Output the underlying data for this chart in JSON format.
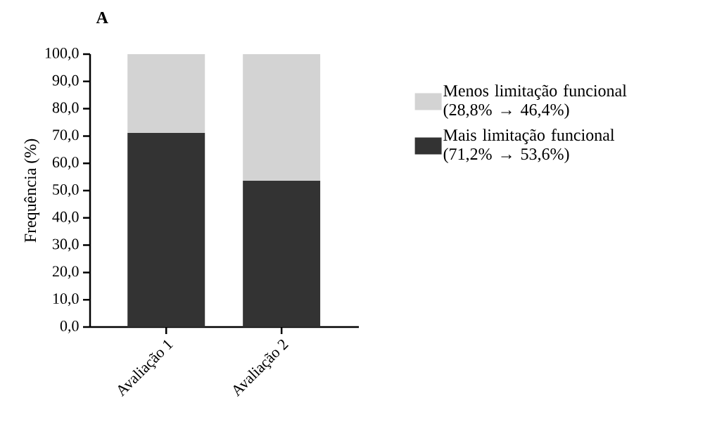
{
  "chart_data": {
    "type": "bar",
    "title": "A",
    "ylabel": "Frequência (%)",
    "categories": [
      "Avaliação 1",
      "Avaliação 2"
    ],
    "stacked": true,
    "series": [
      {
        "name": "Mais limitação funcional (71,2% → 53,6%)",
        "color": "#333333",
        "values": [
          71.2,
          53.6
        ]
      },
      {
        "name": "Menos limitação funcional (28,8% → 46,4%)",
        "color": "#d3d3d3",
        "values": [
          28.8,
          46.4
        ]
      }
    ],
    "ylim": [
      0,
      100
    ],
    "yticks": [
      {
        "value": 0,
        "label": "0,0"
      },
      {
        "value": 10,
        "label": "10,0"
      },
      {
        "value": 20,
        "label": "20,0"
      },
      {
        "value": 30,
        "label": "30,0"
      },
      {
        "value": 40,
        "label": "40,0"
      },
      {
        "value": 50,
        "label": "50,0"
      },
      {
        "value": 60,
        "label": "60,0"
      },
      {
        "value": 70,
        "label": "70,0"
      },
      {
        "value": 80,
        "label": "80,0"
      },
      {
        "value": 90,
        "label": "90,0"
      },
      {
        "value": 100,
        "label": "100,0"
      }
    ],
    "legend": "right",
    "grid": false
  }
}
